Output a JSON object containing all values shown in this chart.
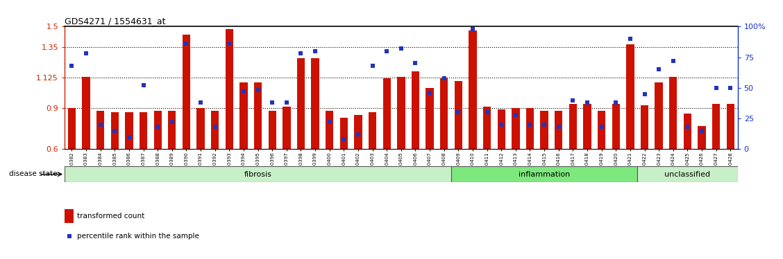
{
  "title": "GDS4271 / 1554631_at",
  "samples": [
    "GSM380382",
    "GSM380383",
    "GSM380384",
    "GSM380385",
    "GSM380386",
    "GSM380387",
    "GSM380388",
    "GSM380389",
    "GSM380390",
    "GSM380391",
    "GSM380392",
    "GSM380393",
    "GSM380394",
    "GSM380395",
    "GSM380396",
    "GSM380397",
    "GSM380398",
    "GSM380399",
    "GSM380400",
    "GSM380401",
    "GSM380402",
    "GSM380403",
    "GSM380404",
    "GSM380405",
    "GSM380406",
    "GSM380407",
    "GSM380408",
    "GSM380409",
    "GSM380410",
    "GSM380411",
    "GSM380412",
    "GSM380413",
    "GSM380414",
    "GSM380415",
    "GSM380416",
    "GSM380417",
    "GSM380418",
    "GSM380419",
    "GSM380420",
    "GSM380421",
    "GSM380422",
    "GSM380423",
    "GSM380424",
    "GSM380425",
    "GSM380426",
    "GSM380427",
    "GSM380428"
  ],
  "bar_values": [
    0.9,
    1.13,
    0.88,
    0.87,
    0.87,
    0.87,
    0.88,
    0.88,
    1.44,
    0.9,
    0.88,
    1.48,
    1.09,
    1.09,
    0.88,
    0.91,
    1.27,
    1.27,
    0.88,
    0.83,
    0.85,
    0.87,
    1.12,
    1.13,
    1.17,
    1.05,
    1.12,
    1.1,
    1.47,
    0.91,
    0.89,
    0.9,
    0.9,
    0.88,
    0.88,
    0.93,
    0.93,
    0.88,
    0.93,
    1.37,
    0.92,
    1.09,
    1.13,
    0.86,
    0.77,
    0.93,
    0.93
  ],
  "percentile_values": [
    68,
    78,
    20,
    15,
    10,
    52,
    18,
    22,
    86,
    38,
    18,
    86,
    47,
    48,
    38,
    38,
    78,
    80,
    22,
    8,
    12,
    68,
    80,
    82,
    70,
    46,
    58,
    30,
    98,
    30,
    20,
    28,
    20,
    20,
    18,
    40,
    38,
    18,
    38,
    90,
    45,
    65,
    72,
    18,
    15,
    50,
    50
  ],
  "disease_groups": [
    {
      "label": "fibrosis",
      "start": 0,
      "end": 27,
      "color": "#c8f0c8"
    },
    {
      "label": "inflammation",
      "start": 27,
      "end": 40,
      "color": "#7de87d"
    },
    {
      "label": "unclassified",
      "start": 40,
      "end": 47,
      "color": "#c8f0c8"
    }
  ],
  "ylim_left": [
    0.6,
    1.5
  ],
  "ylim_right": [
    0,
    100
  ],
  "yticks_left": [
    0.6,
    0.9,
    1.125,
    1.35,
    1.5
  ],
  "ytick_labels_left": [
    "0.6",
    "0.9",
    "1.125",
    "1.35",
    "1.5"
  ],
  "yticks_right": [
    0,
    25,
    50,
    75,
    100
  ],
  "ytick_labels_right": [
    "0",
    "25",
    "50",
    "75",
    "100%"
  ],
  "hlines": [
    0.9,
    1.125,
    1.35
  ],
  "bar_color": "#cc1100",
  "dot_color": "#2233bb",
  "bar_width": 0.55,
  "left_axis_color": "#cc2200",
  "right_axis_color": "#1133cc",
  "plot_bg": "#f5f5f5"
}
